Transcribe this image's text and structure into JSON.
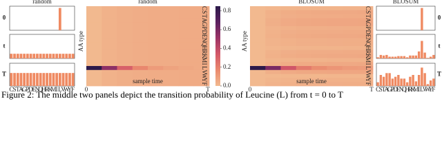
{
  "caption": "Figure 2: The middle two panels depict the transition probability of Leucine (L) from t = 0 to T",
  "chart_data": [
    {
      "type": "bar-stack",
      "title": "random",
      "color": "#ef8a62",
      "row_label_side": "left",
      "categories": [
        "C",
        "S",
        "T",
        "A",
        "G",
        "P",
        "D",
        "E",
        "N",
        "Q",
        "H",
        "R",
        "K",
        "M",
        "I",
        "L",
        "V",
        "W",
        "Y",
        "F"
      ],
      "panels": [
        {
          "label": "0",
          "ylim": [
            0,
            1.05
          ],
          "values": [
            0,
            0,
            0,
            0,
            0,
            0,
            0,
            0,
            0,
            0,
            0,
            0,
            0,
            0,
            0,
            1,
            0,
            0,
            0,
            0
          ]
        },
        {
          "label": "t",
          "ylim": [
            0,
            0.25
          ],
          "values": [
            0.05,
            0.05,
            0.05,
            0.05,
            0.05,
            0.05,
            0.05,
            0.05,
            0.05,
            0.05,
            0.05,
            0.05,
            0.05,
            0.05,
            0.05,
            0.05,
            0.05,
            0.05,
            0.05,
            0.05
          ]
        },
        {
          "label": "T",
          "ylim": [
            0,
            0.085
          ],
          "values": [
            0.05,
            0.05,
            0.05,
            0.05,
            0.05,
            0.05,
            0.05,
            0.05,
            0.05,
            0.05,
            0.05,
            0.05,
            0.05,
            0.05,
            0.05,
            0.05,
            0.05,
            0.05,
            0.05,
            0.05
          ]
        }
      ]
    },
    {
      "type": "heatmap",
      "title": "random",
      "ylabel": "AA type",
      "xlabel": "sample time",
      "xtick_labels": [
        "0",
        "T"
      ],
      "categories": [
        "C",
        "S",
        "T",
        "A",
        "G",
        "P",
        "D",
        "E",
        "N",
        "Q",
        "H",
        "R",
        "K",
        "M",
        "I",
        "L",
        "V",
        "W",
        "Y",
        "F"
      ],
      "clim": [
        0,
        0.85
      ],
      "colorbar_ticks": [
        {
          "value": 0.8,
          "label": "0.8"
        },
        {
          "value": 0.6,
          "label": "0.6"
        },
        {
          "value": 0.4,
          "label": "0.4"
        },
        {
          "value": 0.2,
          "label": "0.2"
        },
        {
          "value": 0,
          "label": "0.0"
        }
      ],
      "matrix": [
        [
          0,
          0.024,
          0.036,
          0.043,
          0.046,
          0.048,
          0.049,
          0.05
        ],
        [
          0,
          0.024,
          0.036,
          0.043,
          0.046,
          0.048,
          0.049,
          0.05
        ],
        [
          0,
          0.024,
          0.036,
          0.043,
          0.046,
          0.048,
          0.049,
          0.05
        ],
        [
          0,
          0.024,
          0.036,
          0.043,
          0.046,
          0.048,
          0.049,
          0.05
        ],
        [
          0,
          0.024,
          0.036,
          0.043,
          0.046,
          0.048,
          0.049,
          0.05
        ],
        [
          0,
          0.024,
          0.036,
          0.043,
          0.046,
          0.048,
          0.049,
          0.05
        ],
        [
          0,
          0.024,
          0.036,
          0.043,
          0.046,
          0.048,
          0.049,
          0.05
        ],
        [
          0,
          0.024,
          0.036,
          0.043,
          0.046,
          0.048,
          0.049,
          0.05
        ],
        [
          0,
          0.024,
          0.036,
          0.043,
          0.046,
          0.048,
          0.049,
          0.05
        ],
        [
          0,
          0.024,
          0.036,
          0.043,
          0.046,
          0.048,
          0.049,
          0.05
        ],
        [
          0,
          0.024,
          0.036,
          0.043,
          0.046,
          0.048,
          0.049,
          0.05
        ],
        [
          0,
          0.024,
          0.036,
          0.043,
          0.046,
          0.048,
          0.049,
          0.05
        ],
        [
          0,
          0.024,
          0.036,
          0.043,
          0.046,
          0.048,
          0.049,
          0.05
        ],
        [
          0,
          0.024,
          0.036,
          0.043,
          0.046,
          0.048,
          0.049,
          0.05
        ],
        [
          0,
          0.024,
          0.036,
          0.043,
          0.046,
          0.048,
          0.049,
          0.05
        ],
        [
          1,
          0.55,
          0.31,
          0.18,
          0.11,
          0.08,
          0.06,
          0.05
        ],
        [
          0,
          0.024,
          0.036,
          0.043,
          0.046,
          0.048,
          0.049,
          0.05
        ],
        [
          0,
          0.024,
          0.036,
          0.043,
          0.046,
          0.048,
          0.049,
          0.05
        ],
        [
          0,
          0.024,
          0.036,
          0.043,
          0.046,
          0.048,
          0.049,
          0.05
        ],
        [
          0,
          0.024,
          0.036,
          0.043,
          0.046,
          0.048,
          0.049,
          0.05
        ]
      ]
    },
    {
      "type": "heatmap",
      "title": "BLOSUM",
      "ylabel": "AA type",
      "xlabel": "sample time",
      "xtick_labels": [
        "0",
        "T"
      ],
      "categories": [
        "C",
        "S",
        "T",
        "A",
        "G",
        "P",
        "D",
        "E",
        "N",
        "Q",
        "H",
        "R",
        "K",
        "M",
        "I",
        "L",
        "V",
        "W",
        "Y",
        "F"
      ],
      "clim": [
        0,
        0.85
      ],
      "matrix": [
        [
          0,
          0.01,
          0.015,
          0.017,
          0.019,
          0.019,
          0.02,
          0.02
        ],
        [
          0,
          0.03,
          0.045,
          0.052,
          0.056,
          0.058,
          0.059,
          0.06
        ],
        [
          0,
          0.025,
          0.038,
          0.044,
          0.047,
          0.048,
          0.049,
          0.05
        ],
        [
          0,
          0.035,
          0.053,
          0.061,
          0.065,
          0.067,
          0.069,
          0.07
        ],
        [
          0,
          0.035,
          0.053,
          0.061,
          0.065,
          0.067,
          0.069,
          0.07
        ],
        [
          0,
          0.02,
          0.03,
          0.035,
          0.037,
          0.038,
          0.039,
          0.04
        ],
        [
          0,
          0.025,
          0.038,
          0.044,
          0.047,
          0.048,
          0.049,
          0.05
        ],
        [
          0,
          0.03,
          0.045,
          0.052,
          0.056,
          0.058,
          0.059,
          0.06
        ],
        [
          0,
          0.02,
          0.03,
          0.035,
          0.037,
          0.038,
          0.039,
          0.04
        ],
        [
          0,
          0.02,
          0.03,
          0.035,
          0.037,
          0.038,
          0.039,
          0.04
        ],
        [
          0,
          0.01,
          0.015,
          0.017,
          0.019,
          0.019,
          0.02,
          0.02
        ],
        [
          0,
          0.025,
          0.038,
          0.044,
          0.047,
          0.048,
          0.049,
          0.05
        ],
        [
          0,
          0.03,
          0.045,
          0.052,
          0.056,
          0.058,
          0.059,
          0.06
        ],
        [
          0,
          0.013,
          0.019,
          0.022,
          0.023,
          0.024,
          0.025,
          0.025
        ],
        [
          0,
          0.03,
          0.045,
          0.052,
          0.056,
          0.058,
          0.059,
          0.06
        ],
        [
          1,
          0.6,
          0.35,
          0.22,
          0.16,
          0.13,
          0.11,
          0.1
        ],
        [
          0,
          0.035,
          0.053,
          0.061,
          0.065,
          0.067,
          0.069,
          0.07
        ],
        [
          0,
          0.005,
          0.008,
          0.009,
          0.009,
          0.01,
          0.01,
          0.01
        ],
        [
          0,
          0.015,
          0.023,
          0.026,
          0.028,
          0.029,
          0.029,
          0.03
        ],
        [
          0,
          0.02,
          0.03,
          0.035,
          0.037,
          0.038,
          0.039,
          0.04
        ]
      ]
    },
    {
      "type": "bar-stack",
      "title": "BLOSUM",
      "color": "#ef8a62",
      "row_label_side": "right",
      "categories": [
        "C",
        "S",
        "T",
        "A",
        "G",
        "P",
        "D",
        "E",
        "N",
        "Q",
        "H",
        "R",
        "K",
        "M",
        "I",
        "L",
        "V",
        "W",
        "Y",
        "F"
      ],
      "panels": [
        {
          "label": "0",
          "ylim": [
            0,
            1.05
          ],
          "values": [
            0,
            0,
            0,
            0,
            0,
            0,
            0,
            0,
            0,
            0,
            0,
            0,
            0,
            0,
            0,
            1,
            0,
            0,
            0,
            0
          ]
        },
        {
          "label": "t",
          "ylim": [
            0,
            0.4
          ],
          "values": [
            0.02,
            0.06,
            0.05,
            0.06,
            0.03,
            0.03,
            0.03,
            0.04,
            0.04,
            0.04,
            0.02,
            0.05,
            0.05,
            0.05,
            0.12,
            0.3,
            0.1,
            0.01,
            0.03,
            0.06
          ]
        },
        {
          "label": "T",
          "ylim": [
            0,
            0.12
          ],
          "values": [
            0.02,
            0.06,
            0.05,
            0.07,
            0.07,
            0.04,
            0.05,
            0.06,
            0.04,
            0.04,
            0.02,
            0.05,
            0.06,
            0.025,
            0.06,
            0.1,
            0.07,
            0.01,
            0.03,
            0.04
          ]
        }
      ]
    }
  ]
}
